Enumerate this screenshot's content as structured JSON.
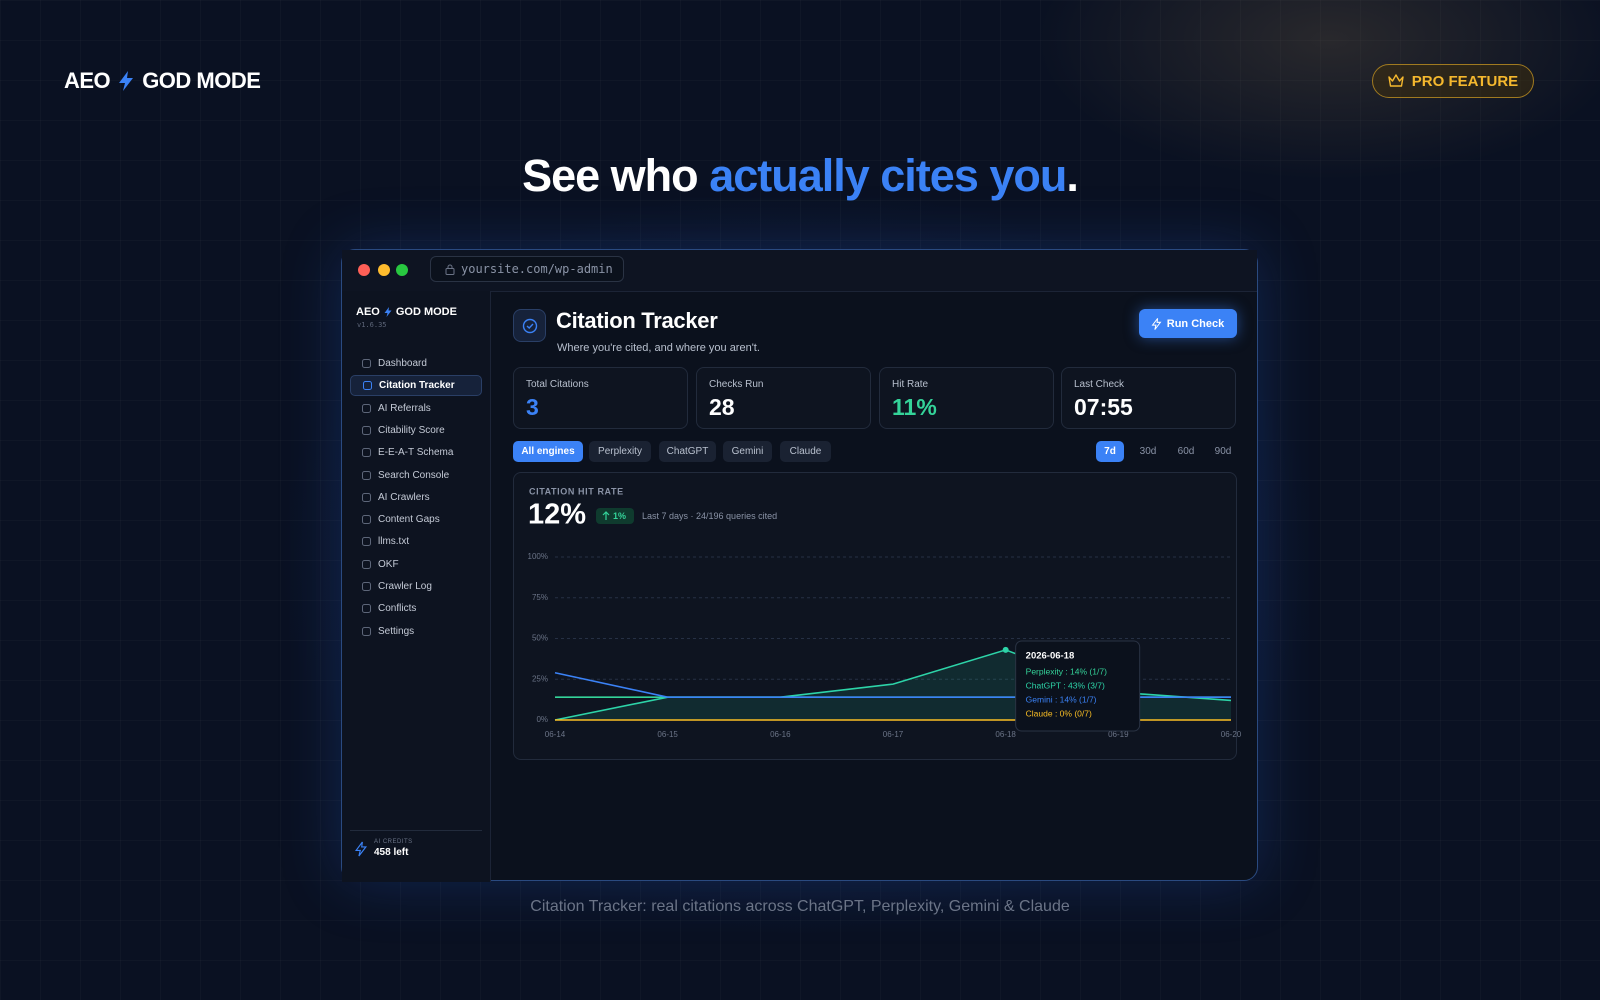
{
  "header": {
    "logo_left": "AEO",
    "logo_right": "GOD MODE",
    "badge": "PRO FEATURE"
  },
  "headline": {
    "lead": "See who",
    "highlight": "actually cites you",
    "end": "."
  },
  "browser": {
    "url": "yoursite.com/wp-admin"
  },
  "sidebar": {
    "logo_left": "AEO",
    "logo_right": "GOD MODE",
    "version": "v1.6.35",
    "nav": [
      "Dashboard",
      "Citation Tracker",
      "AI Referrals",
      "Citability Score",
      "E-E-A-T Schema",
      "Search Console",
      "AI Crawlers",
      "Content Gaps",
      "llms.txt",
      "OKF",
      "Crawler Log",
      "Conflicts",
      "Settings"
    ],
    "active": 1,
    "credits": {
      "label": "AI CREDITS",
      "value": "458 left"
    }
  },
  "page": {
    "title": "Citation Tracker",
    "subtitle": "Where you're cited, and where you aren't.",
    "button": "Run Check"
  },
  "stats": [
    {
      "label": "Total Citations",
      "value": "3",
      "color": "#3b82f6"
    },
    {
      "label": "Checks Run",
      "value": "28",
      "color": "#ffffff"
    },
    {
      "label": "Hit Rate",
      "value": "11%",
      "color": "#34d399"
    },
    {
      "label": "Last Check",
      "value": "07:55",
      "color": "#ffffff"
    }
  ],
  "filters": {
    "engines": [
      "All engines",
      "Perplexity",
      "ChatGPT",
      "Gemini",
      "Claude"
    ],
    "active_engine": 0,
    "ranges": [
      "7d",
      "30d",
      "60d",
      "90d"
    ],
    "active_range": 0
  },
  "chart_data": {
    "type": "line",
    "title": "CITATION HIT RATE",
    "headline": "12%",
    "delta": "1%",
    "subtitle": "Last 7 days · 24/196 queries cited",
    "categories": [
      "06-14",
      "06-15",
      "06-16",
      "06-17",
      "06-18",
      "06-19",
      "06-20"
    ],
    "series": [
      {
        "name": "Perplexity",
        "color": "#34d399",
        "values": [
          14,
          14,
          14,
          14,
          14,
          14,
          14
        ]
      },
      {
        "name": "ChatGPT",
        "color": "#2dd4a8",
        "values": [
          0,
          14,
          14,
          22,
          43,
          17,
          12
        ],
        "fill_area": true
      },
      {
        "name": "Gemini",
        "color": "#3b82f6",
        "values": [
          29,
          14,
          14,
          14,
          14,
          14,
          14
        ]
      },
      {
        "name": "Claude",
        "color": "#fbbf24",
        "values": [
          0,
          0,
          0,
          0,
          0,
          0,
          0
        ]
      }
    ],
    "ylim": [
      0,
      100
    ],
    "yticks": [
      {
        "value": 0,
        "label": "0%"
      },
      {
        "value": 25,
        "label": "25%"
      },
      {
        "value": 50,
        "label": "50%"
      },
      {
        "value": 75,
        "label": "75%"
      },
      {
        "value": 100,
        "label": "100%"
      }
    ],
    "grid": true,
    "tooltip": {
      "index": 4,
      "title": "2026-06-18",
      "entries": [
        "Perplexity : 14% (1/7)",
        "ChatGPT : 43% (3/7)",
        "Gemini : 14% (1/7)",
        "Claude : 0% (0/7)"
      ]
    }
  },
  "caption": "Citation Tracker: real citations across ChatGPT, Perplexity, Gemini & Claude"
}
